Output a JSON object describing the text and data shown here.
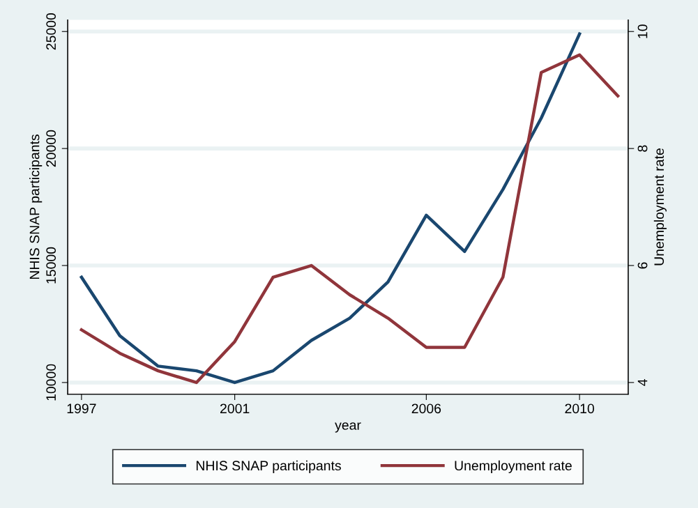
{
  "chart_data": {
    "type": "line",
    "xlabel": "year",
    "ylabel": "NHIS SNAP participants",
    "y2label": "Unemployment rate",
    "x": [
      1997,
      1998,
      1999,
      2000,
      2001,
      2002,
      2003,
      2004,
      2005,
      2006,
      2007,
      2008,
      2009,
      2010,
      2011
    ],
    "series": [
      {
        "name": "NHIS SNAP participants",
        "color": "#1a476f",
        "values": [
          14500,
          12000,
          10700,
          10500,
          10000,
          10500,
          11800,
          12750,
          14300,
          17150,
          15600,
          18250,
          21300,
          24900,
          null
        ]
      },
      {
        "name": "Unemployment rate",
        "color": "#90353b",
        "axis": "y2",
        "values": [
          4.9,
          4.5,
          4.2,
          4.0,
          4.7,
          5.8,
          6.0,
          5.5,
          5.1,
          4.6,
          4.6,
          5.8,
          9.3,
          9.6,
          8.9
        ]
      }
    ],
    "xlim": [
      1996.64,
      2011.27
    ],
    "xticks": [
      1997,
      2001,
      2006,
      2010
    ],
    "ylim": [
      9500,
      25500
    ],
    "yticks": [
      10000,
      15000,
      20000,
      25000
    ],
    "y2lim": [
      3.8,
      10.2
    ],
    "y2ticks": [
      4,
      6,
      8,
      10
    ],
    "grid": "y",
    "legend": "bottom",
    "line_style": "solid",
    "marker": "none"
  }
}
